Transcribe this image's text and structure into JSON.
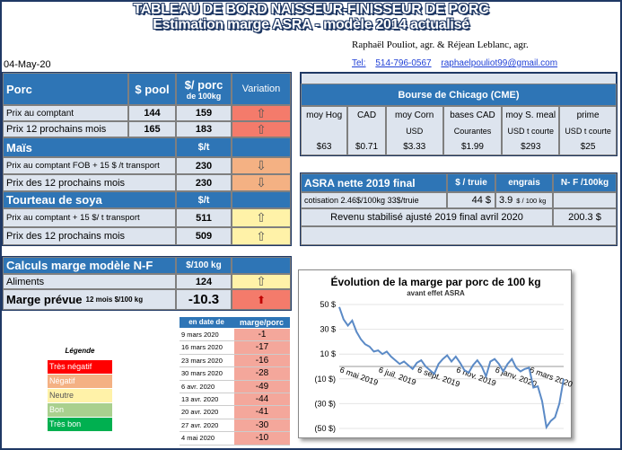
{
  "header": {
    "title_line1": "TABLEAU DE BORD NAISSEUR-FINISSEUR DE PORC",
    "title_line2": "Estimation marge ASRA - modèle 2014 actualisé",
    "authors": "Raphaël Pouliot, agr.    &    Réjean Leblanc, agr.",
    "tel_label": "Tel:",
    "phone": "514-796-0567",
    "email": "raphaelpouliot99@gmail.com",
    "date": "04-May-20"
  },
  "porc": {
    "title": "Porc",
    "col_pool": "$ pool",
    "col_per_porc": "$/ porc",
    "col_per_porc_sub": "de 100kg",
    "col_variation": "Variation",
    "rows": [
      {
        "label": "Prix au comptant",
        "pool": "144",
        "value": "159",
        "arrow": "⇧"
      },
      {
        "label": "Prix 12 prochains mois",
        "pool": "165",
        "value": "183",
        "arrow": "⇧"
      }
    ]
  },
  "mais": {
    "title": "Maïs",
    "unit": "$/t",
    "rows": [
      {
        "label": "Prix au comptant  FOB + 15 $ /t transport",
        "value": "230",
        "arrow": "⇩"
      },
      {
        "label": "Prix des 12 prochains mois",
        "value": "230",
        "arrow": "⇩"
      }
    ]
  },
  "soya": {
    "title": "Tourteau de soya",
    "unit": "$/t",
    "rows": [
      {
        "label": "Prix au comptant  + 15 $/ t  transport",
        "value": "511",
        "arrow": "⇧"
      },
      {
        "label": "Prix des 12 prochains mois",
        "value": "509",
        "arrow": "⇧"
      }
    ]
  },
  "calculs": {
    "title": "Calculs marge  modèle N-F",
    "unit": "$/100 kg",
    "aliments_label": "Aliments",
    "aliments_value": "124",
    "aliments_arrow": "⇧",
    "marge_label": "Marge prévue",
    "marge_sub": "12 mois  $/100 kg",
    "marge_value": "-10.3",
    "marge_arrow": "⬆"
  },
  "history": {
    "col_date": "en date de",
    "col_marge": "marge/porc",
    "rows": [
      {
        "date": "9 mars 2020",
        "value": "-1"
      },
      {
        "date": "16 mars 2020",
        "value": "-17"
      },
      {
        "date": "23 mars 2020",
        "value": "-16"
      },
      {
        "date": "30 mars 2020",
        "value": "-28"
      },
      {
        "date": "6 avr. 2020",
        "value": "-49"
      },
      {
        "date": "13 avr. 2020",
        "value": "-44"
      },
      {
        "date": "20 avr. 2020",
        "value": "-41"
      },
      {
        "date": "27 avr. 2020",
        "value": "-30"
      },
      {
        "date": "4 mai 2020",
        "value": "-10"
      }
    ]
  },
  "legend": {
    "title": "Légende",
    "items": [
      {
        "label": "Très négatif",
        "color": "#ff0000"
      },
      {
        "label": "Négatif",
        "color": "#f4b183"
      },
      {
        "label": "Neutre",
        "color": "#fff2a8"
      },
      {
        "label": "Bon",
        "color": "#a9d08e"
      },
      {
        "label": "Très bon",
        "color": "#00b050"
      }
    ]
  },
  "chicago": {
    "title": "Bourse de Chicago (CME)",
    "cols": [
      {
        "name": "moy Hog",
        "unit": "",
        "value": "$63"
      },
      {
        "name": "CAD",
        "unit": "",
        "value": "$0.71"
      },
      {
        "name": "moy Corn",
        "unit": "USD",
        "value": "$3.33"
      },
      {
        "name": "bases CAD",
        "unit": "Courantes",
        "value": "$1.99"
      },
      {
        "name": "moy S. meal",
        "unit": "USD t courte",
        "value": "$293"
      },
      {
        "name": "prime",
        "unit": "USD t courte",
        "value": "$25"
      }
    ]
  },
  "asra": {
    "title": "ASRA nette 2019 final",
    "col_truie": "$ / truie",
    "col_engrais": "engrais",
    "col_nf": "N- F /100kg",
    "cotisation_label": "cotisation 2.46$/100kg  33$/truie",
    "truie_value": "44  $",
    "engrais_value": "3.9",
    "engrais_unit": "$ / 100 kg",
    "revenu_label": "Revenu stabilisé ajusté 2019 final  avril 2020",
    "revenu_value": "200.3 $"
  },
  "chart_data": {
    "type": "line",
    "title": "Évolution de la marge par porc de 100 kg",
    "subtitle": "avant effet ASRA",
    "xlabel": "",
    "ylabel": "",
    "ylim": [
      -50,
      50
    ],
    "y_ticks": [
      "50 $",
      "30 $",
      "10 $",
      "(10 $)",
      "(30 $)",
      "(50 $)"
    ],
    "x_ticks": [
      "6 mai 2019",
      "6 juil. 2019",
      "6 sept. 2019",
      "6 nov. 2019",
      "6 janv. 2020",
      "6 mars 2020"
    ],
    "x_tick_weeks": [
      0,
      9,
      18,
      27,
      36,
      44
    ],
    "series": [
      {
        "color": "#5b8ac6",
        "values": [
          48,
          38,
          33,
          37,
          28,
          22,
          18,
          16,
          12,
          13,
          10,
          12,
          8,
          5,
          2,
          4,
          1,
          -2,
          3,
          5,
          0,
          -3,
          -6,
          2,
          6,
          9,
          4,
          8,
          3,
          -3,
          -5,
          1,
          5,
          0,
          -8,
          4,
          6,
          2,
          -4,
          2,
          6,
          -1,
          -4,
          -2,
          -1,
          -17,
          -16,
          -28,
          -49,
          -44,
          -41,
          -30,
          -10
        ]
      }
    ]
  }
}
